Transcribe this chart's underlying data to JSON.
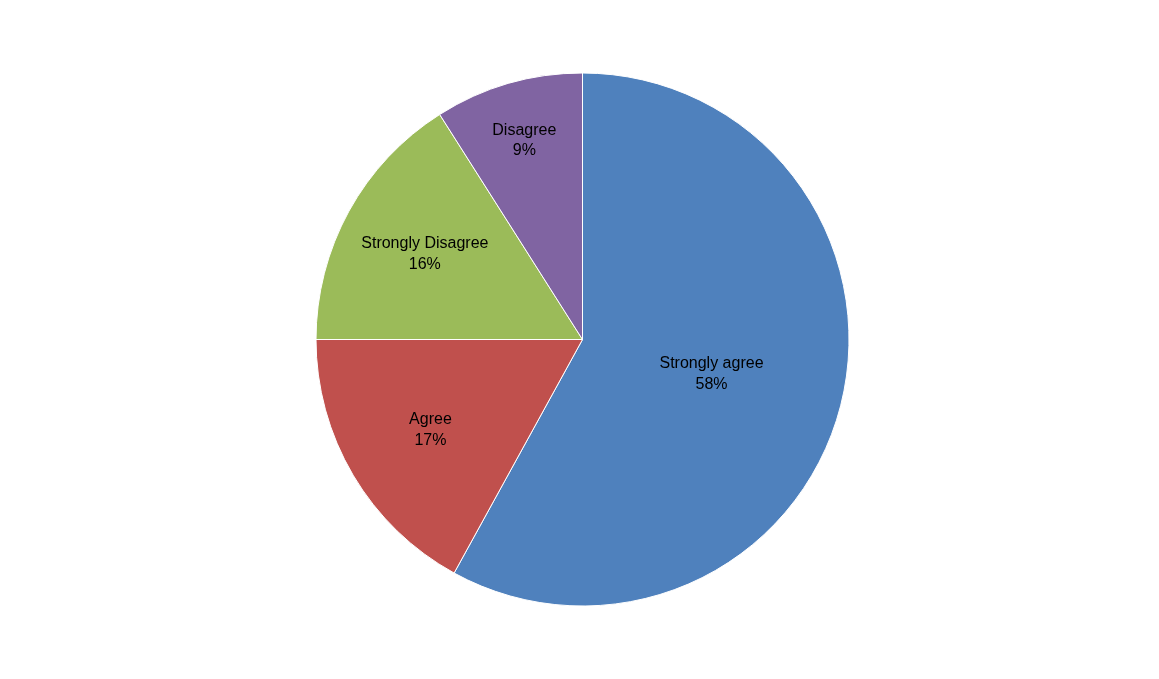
{
  "chart_data": {
    "type": "pie",
    "categories": [
      "Strongly agree",
      "Agree",
      "Strongly Disagree",
      "Disagree"
    ],
    "values": [
      58,
      17,
      16,
      9
    ],
    "value_labels": [
      "58%",
      "17%",
      "16%",
      "9%"
    ],
    "colors": [
      "#4f81bd",
      "#c0504d",
      "#9bbb59",
      "#8064a2"
    ],
    "legend": false
  }
}
